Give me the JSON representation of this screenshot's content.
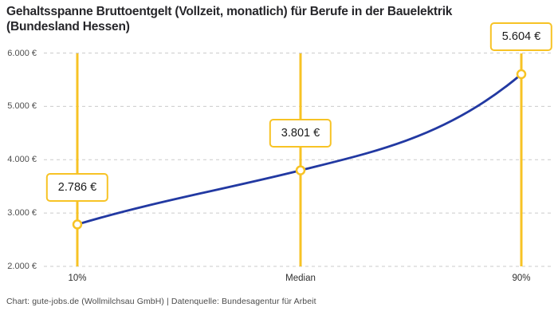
{
  "header": {
    "title_line1": "Gehaltsspanne Bruttoentgelt (Vollzeit, monatlich) für Berufe in der Bauelektrik",
    "title_line2": "(Bundesland Hessen)"
  },
  "footer": {
    "text": "Chart: gute-jobs.de (Wollmilchsau GmbH) | Datenquelle: Bundesagentur für Arbeit"
  },
  "chart_data": {
    "type": "line",
    "title": "Gehaltsspanne Bruttoentgelt (Vollzeit, monatlich) für Berufe in der Bauelektrik (Bundesland Hessen)",
    "categories": [
      "10%",
      "Median",
      "90%"
    ],
    "values": [
      2786,
      3801,
      5604
    ],
    "value_labels": [
      "2.786 €",
      "3.801 €",
      "5.604 €"
    ],
    "y_ticks": [
      {
        "value": 6000,
        "label": "6.000 €"
      },
      {
        "value": 5000,
        "label": "5.000 €"
      },
      {
        "value": 4000,
        "label": "4.000 €"
      },
      {
        "value": 3000,
        "label": "3.000 €"
      },
      {
        "value": 2000,
        "label": "2.000 €"
      }
    ],
    "ylim": [
      2000,
      6000
    ],
    "grid": "horizontal-dashed",
    "legend": "none",
    "colors": {
      "line": "#2239A2",
      "marker": "#F7C325",
      "grid": "#CBCBCB",
      "title_text": "#26262A",
      "axis_text": "#4F4F4F",
      "footer_text": "#4A4A4A",
      "background": "#FFFFFF"
    }
  }
}
